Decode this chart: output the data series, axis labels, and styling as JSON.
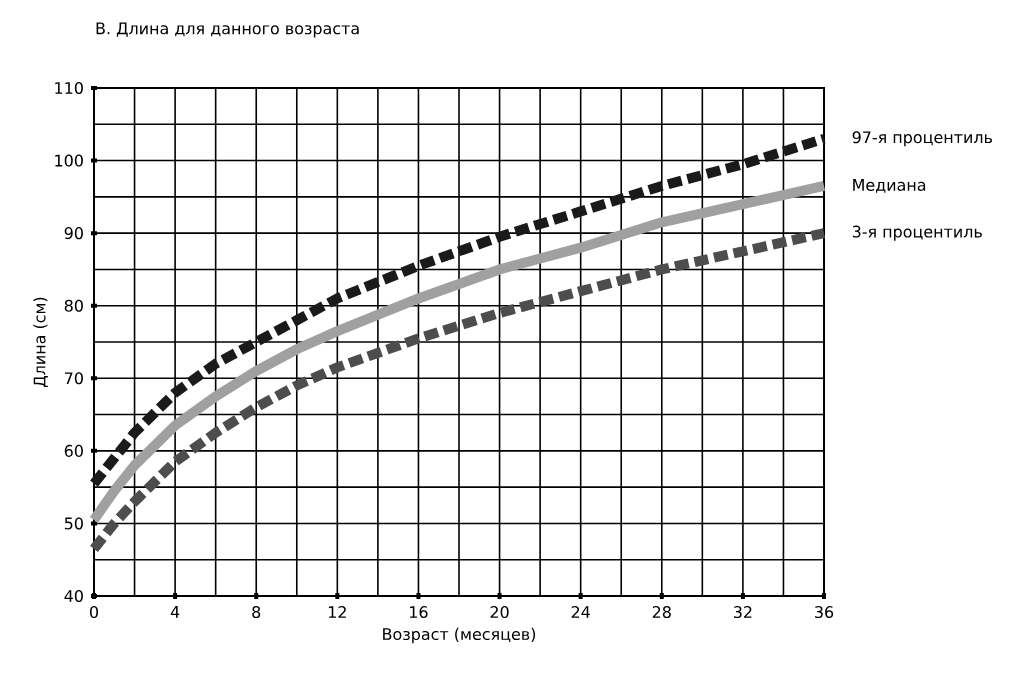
{
  "chart_data": {
    "type": "line",
    "title": "В. Длина для данного возраста",
    "xlabel": "Возраст (месяцев)",
    "ylabel": "Длина (см)",
    "x": [
      0,
      1,
      2,
      4,
      6,
      8,
      10,
      12,
      16,
      20,
      24,
      28,
      32,
      36
    ],
    "series": [
      {
        "name": "97-я процентиль",
        "color": "#1a1a1a",
        "line_style": "dashed",
        "values": [
          55.5,
          59,
          62.5,
          68,
          72,
          75,
          78,
          81,
          85.5,
          89.5,
          93,
          96.5,
          99.5,
          103
        ]
      },
      {
        "name": "Медиана",
        "color": "#a0a0a0",
        "line_style": "solid",
        "values": [
          50.5,
          54.5,
          58,
          63.5,
          67.5,
          71,
          74,
          76.5,
          81,
          85,
          88,
          91.5,
          94,
          96.5
        ]
      },
      {
        "name": "3-я процентиль",
        "color": "#4d4d4d",
        "line_style": "dashed",
        "values": [
          46.5,
          50,
          53,
          58.5,
          62.5,
          66,
          69,
          71.5,
          75.5,
          79,
          82,
          85,
          87.5,
          90
        ]
      }
    ],
    "xlim": [
      0,
      36
    ],
    "ylim": [
      40,
      110
    ],
    "xticks": [
      0,
      4,
      8,
      12,
      16,
      20,
      24,
      28,
      32,
      36
    ],
    "yticks": [
      40,
      50,
      60,
      70,
      80,
      90,
      100,
      110
    ],
    "grid": true,
    "legend": false,
    "marker": "none"
  }
}
